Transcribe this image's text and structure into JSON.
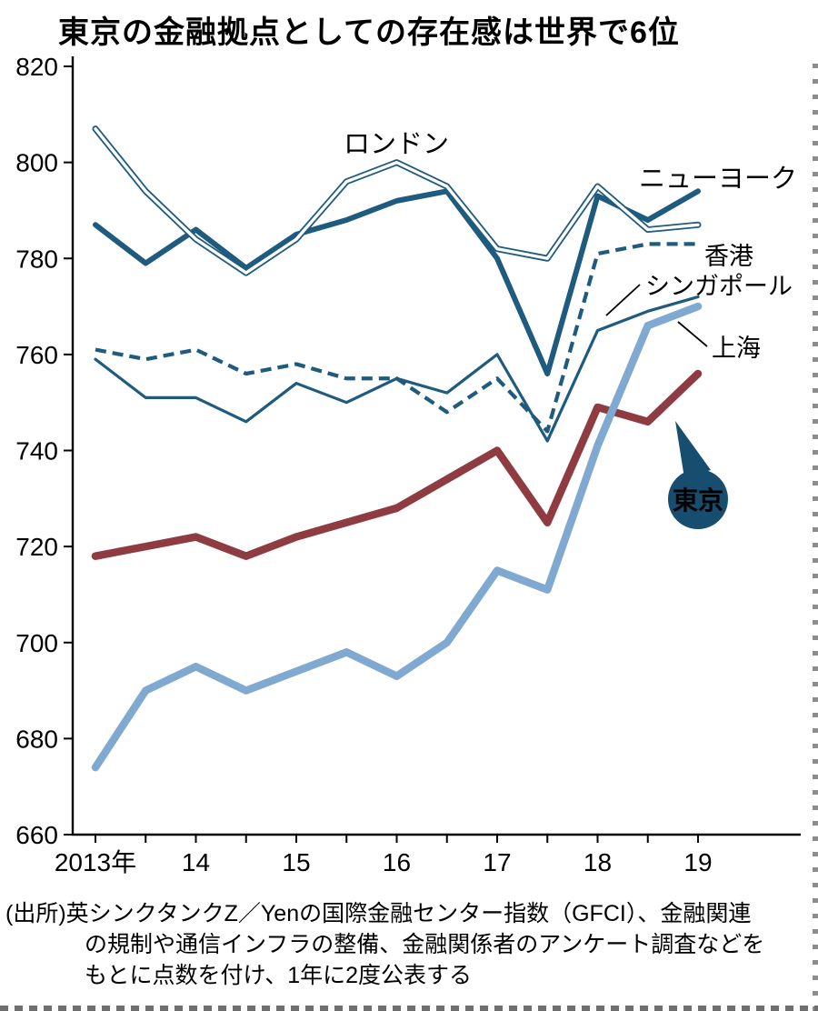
{
  "title": "東京の金融拠点としての存在感は世界で6位",
  "source": {
    "lines": [
      "(出所)英シンクタンクZ／Yenの国際金融センター指数（GFCI）、金融関連",
      "の規制や通信インフラの整備、金融関係者のアンケート調査などを",
      "もとに点数を付け、1年に2度公表する"
    ]
  },
  "chart_data": {
    "type": "line",
    "title": "東京の金融拠点としての存在感は世界で6位",
    "x_tick_labels": [
      "2013年",
      "14",
      "15",
      "16",
      "17",
      "18",
      "19"
    ],
    "x_label_point_indices": [
      0,
      2,
      4,
      6,
      8,
      10,
      12
    ],
    "x_points_per_year": 2,
    "ylim": [
      660,
      820
    ],
    "yticks": [
      820,
      800,
      780,
      760,
      740,
      720,
      700,
      680,
      660
    ],
    "series": [
      {
        "name": "ロンドン",
        "line_style": "outlined",
        "color": "#1e5b7e",
        "values": [
          807,
          794,
          784,
          777,
          784,
          796,
          800,
          795,
          782,
          780,
          795,
          786,
          787
        ]
      },
      {
        "name": "ニューヨーク",
        "line_style": "bold",
        "color": "#1e5b7e",
        "values": [
          787,
          779,
          786,
          778,
          785,
          788,
          792,
          794,
          780,
          756,
          793,
          788,
          794
        ]
      },
      {
        "name": "香港",
        "line_style": "dashed",
        "color": "#1e5b7e",
        "values": [
          761,
          759,
          761,
          756,
          758,
          755,
          755,
          748,
          755,
          744,
          781,
          783,
          783
        ]
      },
      {
        "name": "シンガポール",
        "line_style": "thin",
        "color": "#1e5b7e",
        "values": [
          759,
          751,
          751,
          746,
          754,
          750,
          755,
          752,
          760,
          742,
          765,
          769,
          772
        ]
      },
      {
        "name": "上海",
        "line_style": "heavy",
        "color": "#7fa9d0",
        "values": [
          674,
          690,
          695,
          690,
          694,
          698,
          693,
          700,
          715,
          711,
          741,
          766,
          770
        ]
      },
      {
        "name": "東京",
        "line_style": "heavy",
        "color": "#8e3b41",
        "values": [
          718,
          720,
          722,
          718,
          722,
          725,
          728,
          734,
          740,
          725,
          749,
          746,
          756
        ]
      }
    ],
    "tokyo_badge": {
      "label": "東京",
      "color": "#174e70",
      "text_color": "#ffffff"
    }
  }
}
